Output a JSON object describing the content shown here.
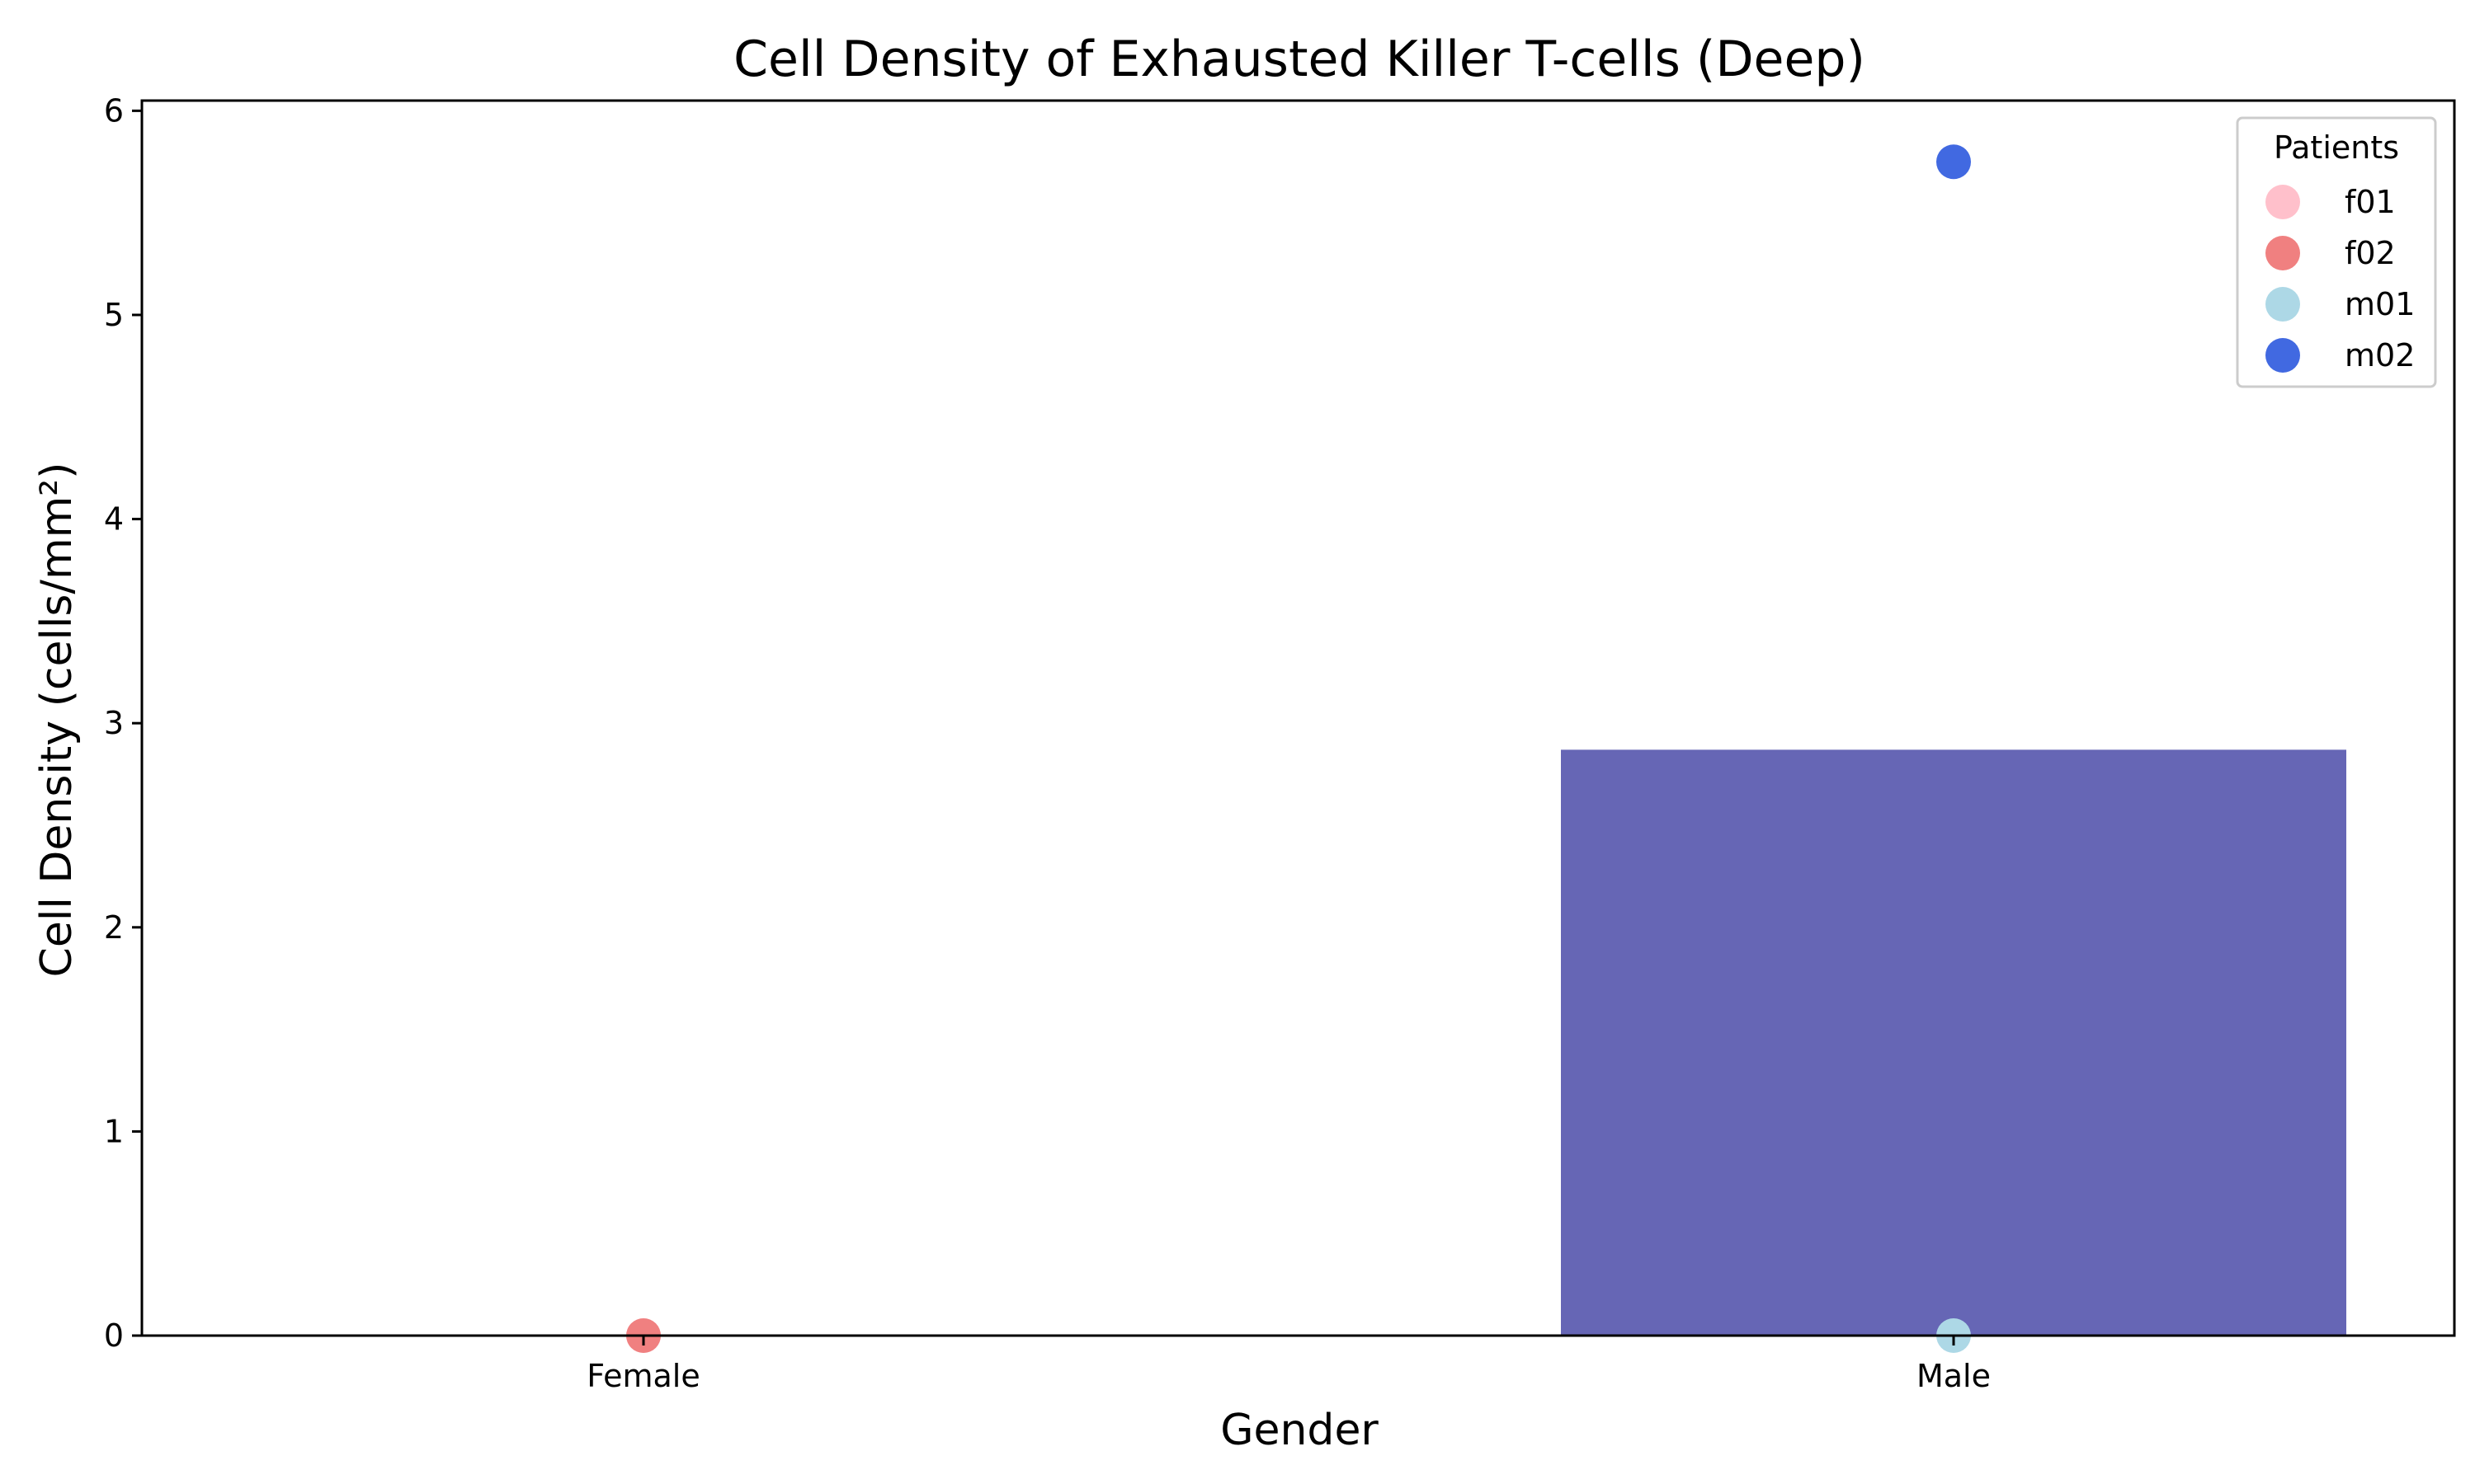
{
  "chart_data": {
    "type": "bar",
    "title": "Cell Density of Exhausted Killer T-cells (Deep)",
    "xlabel": "Gender",
    "ylabel": "Cell Density (cells/mm²)",
    "ylim": [
      0,
      6.05
    ],
    "yticks": [
      0,
      1,
      2,
      3,
      4,
      5,
      6
    ],
    "categories": [
      "Female",
      "Male"
    ],
    "bars": [
      {
        "category": "Female",
        "value": 0.0,
        "color": "#6666b5"
      },
      {
        "category": "Male",
        "value": 2.87,
        "color": "#6666b5"
      }
    ],
    "points": [
      {
        "patient": "f01",
        "category": "Female",
        "value": 0.0
      },
      {
        "patient": "f02",
        "category": "Female",
        "value": 0.0
      },
      {
        "patient": "m01",
        "category": "Male",
        "value": 0.0
      },
      {
        "patient": "m02",
        "category": "Male",
        "value": 5.75
      }
    ],
    "legend": {
      "title": "Patients",
      "position": "top-right",
      "entries": [
        {
          "label": "f01",
          "color": "#ffc0cb"
        },
        {
          "label": "f02",
          "color": "#f08080"
        },
        {
          "label": "m01",
          "color": "#add8e6"
        },
        {
          "label": "m02",
          "color": "#4169e1"
        }
      ]
    },
    "grid": false
  }
}
